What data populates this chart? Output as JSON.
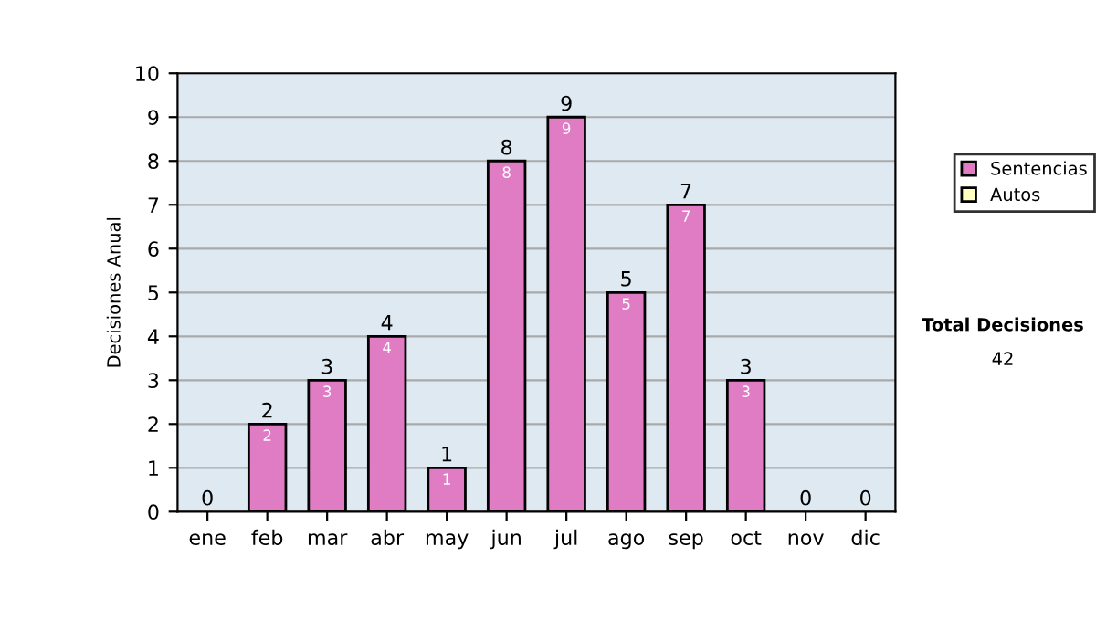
{
  "chart_data": {
    "type": "bar",
    "stacked": true,
    "ylabel": "Decisiones Anual",
    "categories": [
      "ene",
      "feb",
      "mar",
      "abr",
      "may",
      "jun",
      "jul",
      "ago",
      "sep",
      "oct",
      "nov",
      "dic"
    ],
    "series": [
      {
        "name": "Sentencias",
        "color": "#e07cc4",
        "values": [
          0,
          2,
          3,
          4,
          1,
          8,
          9,
          5,
          7,
          3,
          0,
          0
        ],
        "value_labels": [
          null,
          "2",
          "3",
          "4",
          "1",
          "8",
          "9",
          "5",
          "7",
          "3",
          null,
          null
        ]
      },
      {
        "name": "Autos",
        "color": "#ffffc0",
        "values": [
          null,
          null,
          null,
          null,
          null,
          null,
          null,
          null,
          null,
          null,
          null,
          null
        ]
      }
    ],
    "totals": [
      "0",
      "2",
      "3",
      "4",
      "1",
      "8",
      "9",
      "5",
      "7",
      "3",
      "0",
      "0"
    ],
    "ylim": [
      0,
      10
    ],
    "yticks": [
      0,
      1,
      2,
      3,
      4,
      5,
      6,
      7,
      8,
      9,
      10
    ],
    "grid": "y",
    "legend": "right",
    "annotations": [
      "Total Decisiones",
      "42"
    ]
  }
}
